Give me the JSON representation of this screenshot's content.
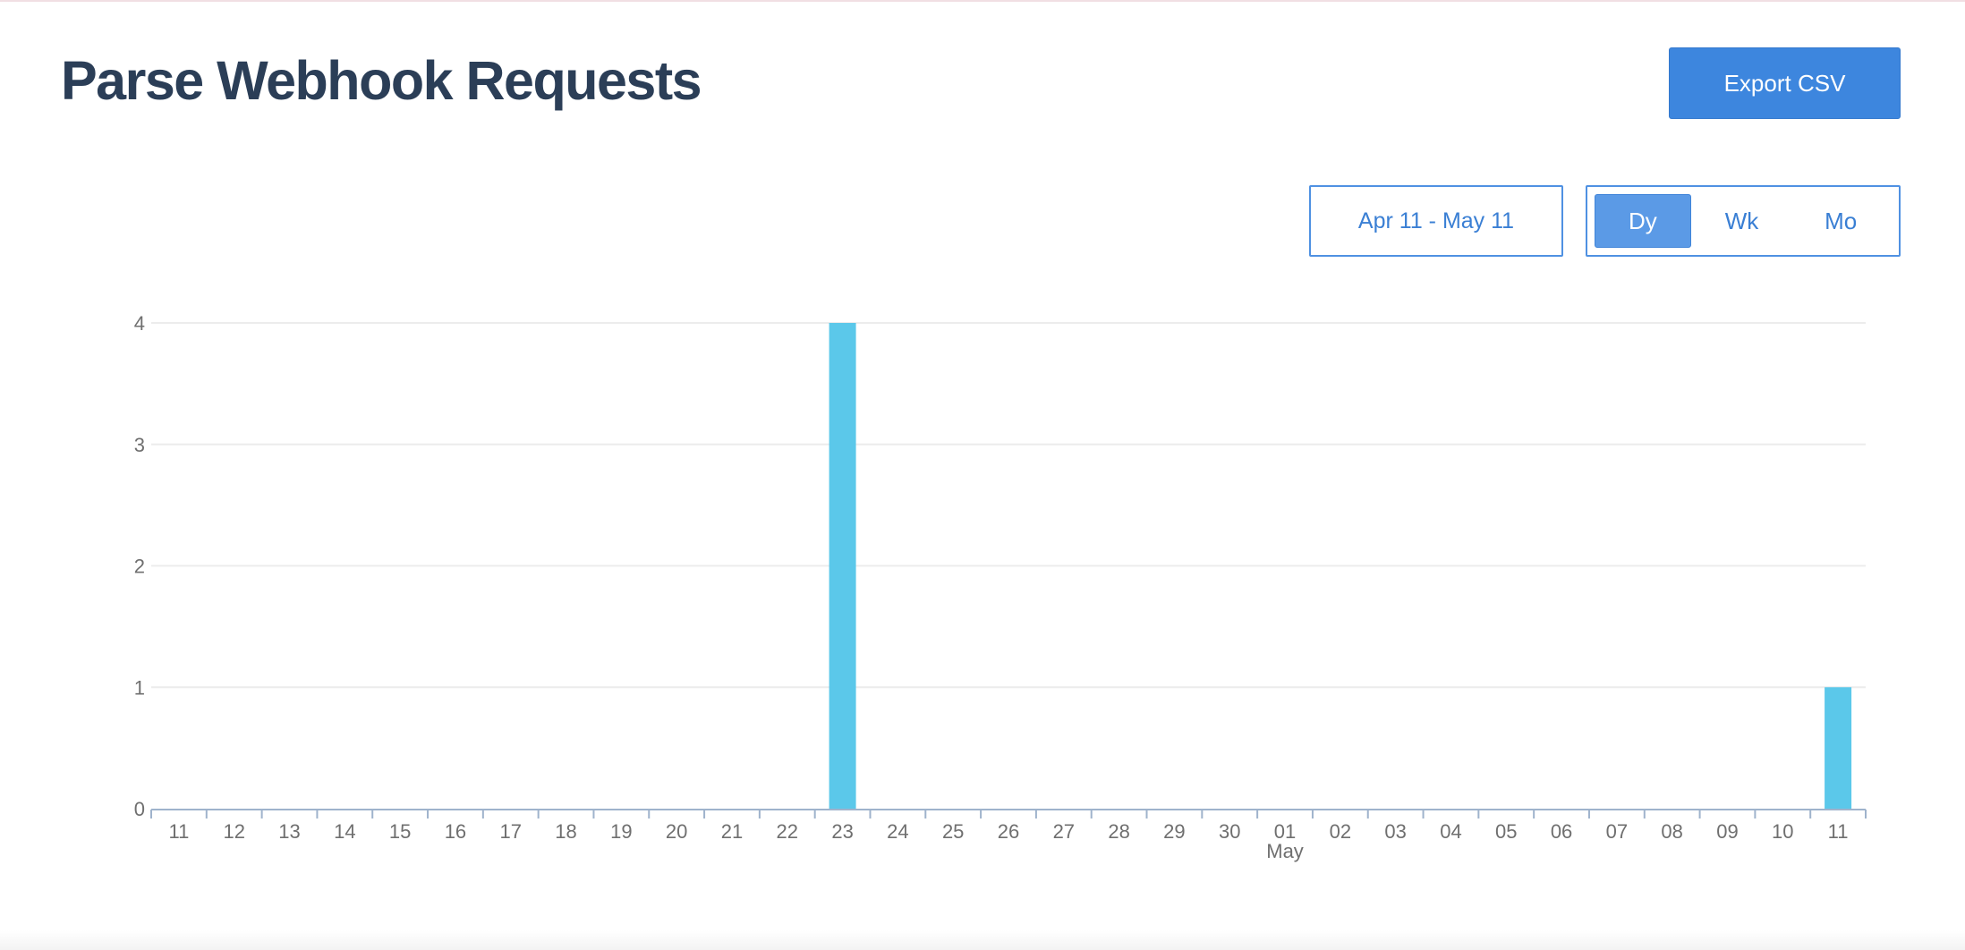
{
  "header": {
    "title": "Parse Webhook Requests",
    "export_label": "Export CSV"
  },
  "controls": {
    "date_range_label": "Apr 11 - May 11",
    "granularity_options": [
      "Dy",
      "Wk",
      "Mo"
    ],
    "granularity_selected": "Dy"
  },
  "colors": {
    "bar": "#5bc8ea",
    "title": "#2b3e57",
    "accent": "#3d86de"
  },
  "chart_data": {
    "type": "bar",
    "title": "",
    "xlabel": "",
    "ylabel": "",
    "categories": [
      "11",
      "12",
      "13",
      "14",
      "15",
      "16",
      "17",
      "18",
      "19",
      "20",
      "21",
      "22",
      "23",
      "24",
      "25",
      "26",
      "27",
      "28",
      "29",
      "30",
      "01",
      "02",
      "03",
      "04",
      "05",
      "06",
      "07",
      "08",
      "09",
      "10",
      "11"
    ],
    "month_labels": [
      {
        "category_index": 20,
        "label": "May"
      }
    ],
    "values": [
      0,
      0,
      0,
      0,
      0,
      0,
      0,
      0,
      0,
      0,
      0,
      0,
      4,
      0,
      0,
      0,
      0,
      0,
      0,
      0,
      0,
      0,
      0,
      0,
      0,
      0,
      0,
      0,
      0,
      0,
      1
    ],
    "ylim": [
      0,
      4
    ],
    "yticks": [
      0,
      1,
      2,
      3,
      4
    ],
    "grid": true,
    "legend": "none"
  }
}
